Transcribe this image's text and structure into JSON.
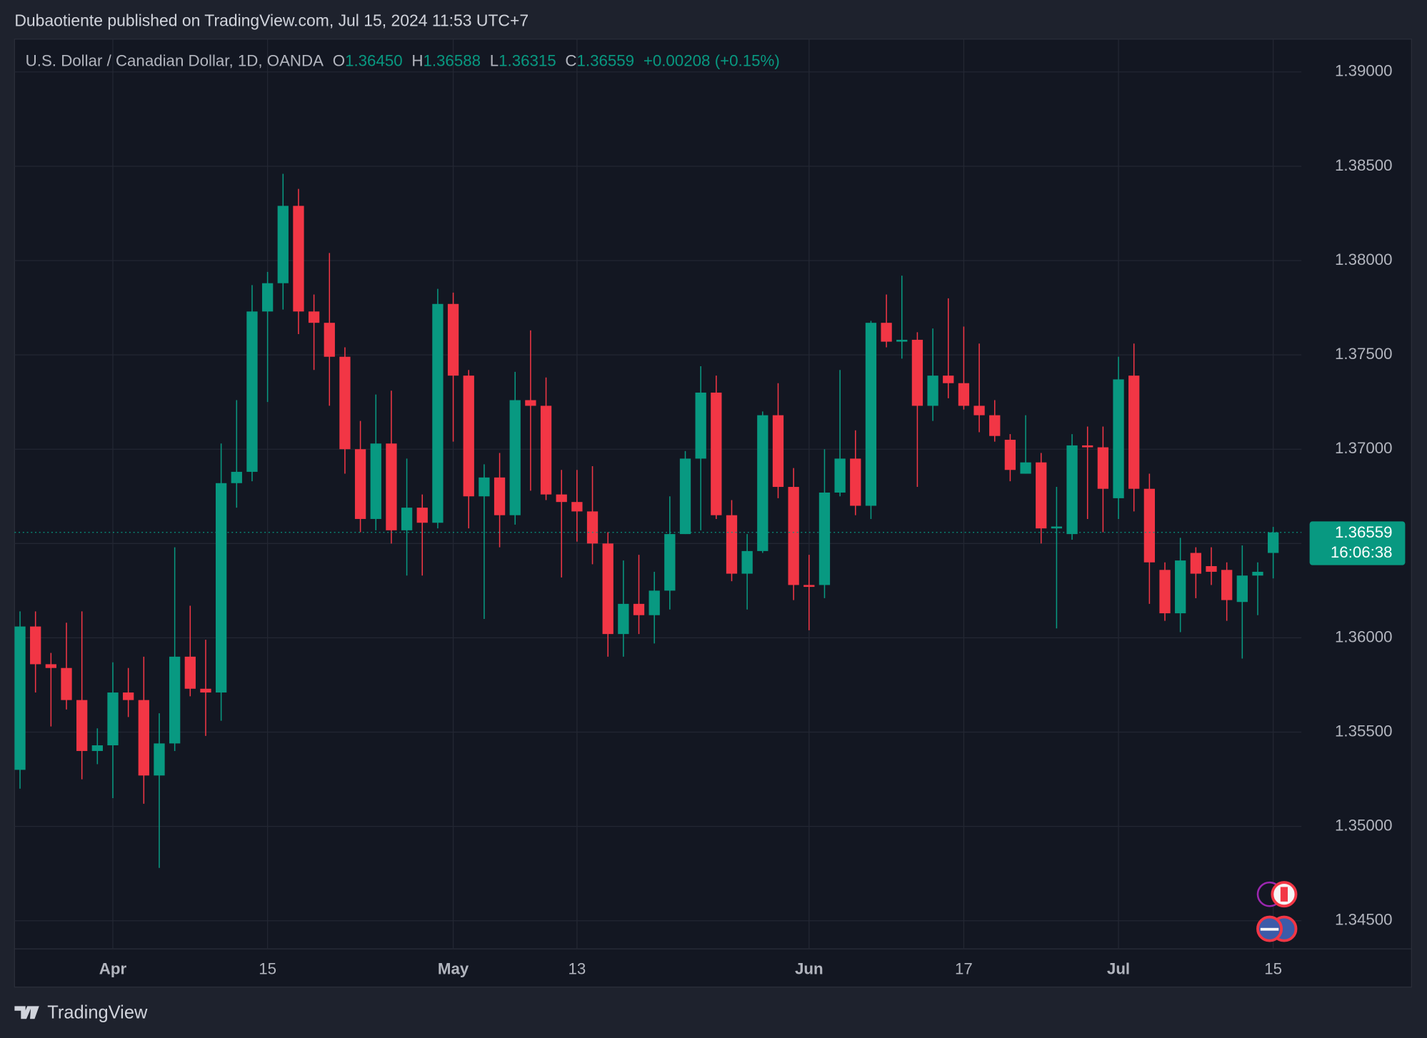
{
  "publisher_line": "Dubaotiente published on TradingView.com, Jul 15, 2024 11:53 UTC+7",
  "footer_brand": "TradingView",
  "chart_data": {
    "type": "candlestick",
    "title": "U.S. Dollar / Canadian Dollar, 1D, OANDA",
    "quote": {
      "open_key": "O",
      "open": {
        "value": 1.3645,
        "label": "1.36450"
      },
      "high_key": "H",
      "high": {
        "value": 1.36588,
        "label": "1.36588"
      },
      "low_key": "L",
      "low": {
        "value": 1.36315,
        "label": "1.36315"
      },
      "close_key": "C",
      "close": {
        "value": 1.36559,
        "label": "1.36559"
      },
      "change": {
        "value": 0.00208,
        "label": "+0.00208"
      },
      "change_pct": {
        "value": 0.15,
        "label": "(+0.15%)"
      }
    },
    "last_price": {
      "value": 1.36559,
      "label": "1.36559"
    },
    "countdown": "16:06:38",
    "up_color": "#089981",
    "down_color": "#f23645",
    "grid": true,
    "categories": [
      null,
      null,
      null,
      null,
      null,
      null,
      "Apr",
      null,
      null,
      null,
      null,
      null,
      null,
      null,
      null,
      null,
      "15",
      null,
      null,
      null,
      null,
      null,
      null,
      null,
      null,
      null,
      null,
      null,
      "May",
      null,
      null,
      null,
      null,
      null,
      null,
      null,
      "13",
      null,
      null,
      null,
      null,
      null,
      null,
      null,
      null,
      null,
      null,
      null,
      null,
      null,
      null,
      "Jun",
      null,
      null,
      null,
      null,
      null,
      null,
      null,
      null,
      null,
      "17",
      null,
      null,
      null,
      null,
      null,
      null,
      null,
      null,
      null,
      "Jul",
      null,
      null,
      null,
      null,
      null,
      null,
      null,
      null,
      null,
      "15"
    ],
    "open": [
      1.353,
      1.3606,
      1.3586,
      1.3584,
      1.3567,
      1.354,
      1.3543,
      1.3571,
      1.3567,
      1.3527,
      1.3544,
      1.359,
      1.3573,
      1.3571,
      1.3682,
      1.3688,
      1.3773,
      1.3788,
      1.3829,
      1.3773,
      1.3767,
      1.3749,
      1.37,
      1.3663,
      1.3703,
      1.3657,
      1.3669,
      1.3661,
      1.3777,
      1.3739,
      1.3675,
      1.3685,
      1.3665,
      1.3726,
      1.3723,
      1.3676,
      1.3672,
      1.3667,
      1.365,
      1.3602,
      1.3618,
      1.3612,
      1.3625,
      1.3655,
      1.3695,
      1.373,
      1.3665,
      1.3634,
      1.3646,
      1.3718,
      1.368,
      1.3628,
      1.3628,
      1.3677,
      1.3695,
      1.367,
      1.3767,
      1.3757,
      1.3758,
      1.3723,
      1.3739,
      1.3735,
      1.3723,
      1.3718,
      1.3705,
      1.3687,
      1.3693,
      1.3658,
      1.3655,
      1.3702,
      1.3701,
      1.3674,
      1.3739,
      1.3679,
      1.3636,
      1.3613,
      1.3645,
      1.3638,
      1.3636,
      1.3619,
      1.3633,
      1.3645
    ],
    "high": [
      1.3614,
      1.3614,
      1.3592,
      1.3608,
      1.3614,
      1.3552,
      1.3587,
      1.3584,
      1.359,
      1.356,
      1.3648,
      1.3617,
      1.3599,
      1.3703,
      1.3726,
      1.3787,
      1.3794,
      1.3846,
      1.3838,
      1.3782,
      1.3804,
      1.3754,
      1.3715,
      1.3729,
      1.3731,
      1.3695,
      1.3676,
      1.3785,
      1.3783,
      1.3742,
      1.3692,
      1.3698,
      1.3741,
      1.3763,
      1.3738,
      1.3689,
      1.3689,
      1.3691,
      1.3656,
      1.3641,
      1.3644,
      1.3635,
      1.3675,
      1.3699,
      1.3744,
      1.3739,
      1.3673,
      1.3655,
      1.372,
      1.3735,
      1.369,
      1.3644,
      1.37,
      1.3742,
      1.371,
      1.3768,
      1.3782,
      1.3792,
      1.3762,
      1.3764,
      1.378,
      1.3765,
      1.3756,
      1.3726,
      1.3708,
      1.3718,
      1.3698,
      1.368,
      1.3708,
      1.3712,
      1.3712,
      1.3749,
      1.3756,
      1.3687,
      1.364,
      1.3653,
      1.3648,
      1.3648,
      1.364,
      1.3649,
      1.364,
      1.36588
    ],
    "low": [
      1.352,
      1.3571,
      1.3553,
      1.3562,
      1.3525,
      1.3533,
      1.3515,
      1.3558,
      1.3512,
      1.3478,
      1.354,
      1.3569,
      1.3548,
      1.3556,
      1.3669,
      1.3683,
      1.3725,
      1.3774,
      1.3761,
      1.3742,
      1.3723,
      1.3687,
      1.3656,
      1.3657,
      1.365,
      1.3633,
      1.3633,
      1.3658,
      1.3704,
      1.3658,
      1.361,
      1.3648,
      1.366,
      1.3678,
      1.3673,
      1.3632,
      1.3651,
      1.3639,
      1.359,
      1.359,
      1.3602,
      1.3597,
      1.3615,
      1.3655,
      1.3657,
      1.3663,
      1.363,
      1.3615,
      1.3645,
      1.3674,
      1.362,
      1.3604,
      1.3621,
      1.3675,
      1.3665,
      1.3663,
      1.3754,
      1.3748,
      1.368,
      1.3715,
      1.3727,
      1.3721,
      1.3709,
      1.3704,
      1.3683,
      1.3687,
      1.365,
      1.3605,
      1.3652,
      1.3663,
      1.3656,
      1.3663,
      1.3667,
      1.3618,
      1.3609,
      1.3603,
      1.3621,
      1.3628,
      1.3609,
      1.3589,
      1.3612,
      1.36315
    ],
    "close": [
      1.3606,
      1.3586,
      1.3584,
      1.3567,
      1.354,
      1.3543,
      1.3571,
      1.3567,
      1.3527,
      1.3544,
      1.359,
      1.3573,
      1.3571,
      1.3682,
      1.3688,
      1.3773,
      1.3788,
      1.3829,
      1.3773,
      1.3767,
      1.3749,
      1.37,
      1.3663,
      1.3703,
      1.3657,
      1.3669,
      1.3661,
      1.3777,
      1.3739,
      1.3675,
      1.3685,
      1.3665,
      1.3726,
      1.3723,
      1.3676,
      1.3672,
      1.3667,
      1.365,
      1.3602,
      1.3618,
      1.3612,
      1.3625,
      1.3655,
      1.3695,
      1.373,
      1.3665,
      1.3634,
      1.3646,
      1.3718,
      1.368,
      1.3628,
      1.3627,
      1.3677,
      1.3695,
      1.367,
      1.3767,
      1.3757,
      1.3758,
      1.3723,
      1.3739,
      1.3735,
      1.3723,
      1.3718,
      1.3707,
      1.3689,
      1.3693,
      1.3658,
      1.3659,
      1.3702,
      1.3701,
      1.3679,
      1.3737,
      1.3679,
      1.364,
      1.3613,
      1.3641,
      1.3634,
      1.3635,
      1.362,
      1.3633,
      1.3635,
      1.36559
    ],
    "ylim": [
      1.34351,
      1.39174
    ],
    "yticks": [
      {
        "value": 1.345,
        "label": "1.34500"
      },
      {
        "value": 1.35,
        "label": "1.35000"
      },
      {
        "value": 1.355,
        "label": "1.35500"
      },
      {
        "value": 1.36,
        "label": "1.36000"
      },
      {
        "value": 1.365,
        "label": "1.36500"
      },
      {
        "value": 1.37,
        "label": "1.37000"
      },
      {
        "value": 1.375,
        "label": "1.37500"
      },
      {
        "value": 1.38,
        "label": "1.38000"
      },
      {
        "value": 1.385,
        "label": "1.38500"
      },
      {
        "value": 1.39,
        "label": "1.39000"
      }
    ]
  }
}
